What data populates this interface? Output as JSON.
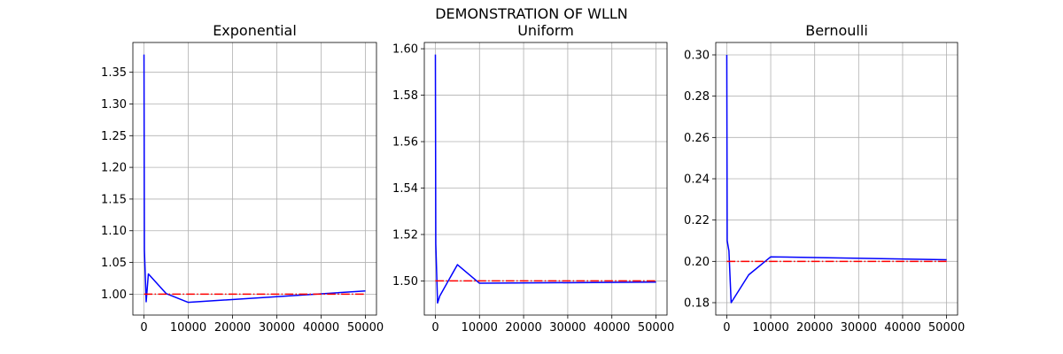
{
  "figure": {
    "suptitle": "DEMONSTRATION OF WLLN"
  },
  "colors": {
    "sample_mean": "#0000ff",
    "true_mean": "#ff0000",
    "grid": "#b0b0b0",
    "axes": "#000000"
  },
  "chart_data": [
    {
      "type": "line",
      "title": "Exponential",
      "xlabel": "",
      "ylabel": "",
      "xlim": [
        -2500,
        52500
      ],
      "ylim": [
        0.967,
        1.397
      ],
      "xticks": [
        0,
        10000,
        20000,
        30000,
        40000,
        50000
      ],
      "xtick_labels": [
        "0",
        "10000",
        "20000",
        "30000",
        "40000",
        "50000"
      ],
      "yticks": [
        1.0,
        1.05,
        1.1,
        1.15,
        1.2,
        1.25,
        1.3,
        1.35
      ],
      "ytick_labels": [
        "1.00",
        "1.05",
        "1.10",
        "1.15",
        "1.20",
        "1.25",
        "1.30",
        "1.35"
      ],
      "grid": true,
      "series": [
        {
          "style": "solid",
          "color": "#0000ff",
          "x": [
            10,
            100,
            500,
            1000,
            5000,
            10000,
            50000
          ],
          "y": [
            1.378,
            1.07,
            0.988,
            1.032,
            1.001,
            0.987,
            1.005
          ]
        },
        {
          "style": "dashdot",
          "color": "#ff0000",
          "x": [
            10,
            50000
          ],
          "y": [
            1.0,
            1.0
          ]
        }
      ]
    },
    {
      "type": "line",
      "title": "Uniform",
      "xlabel": "",
      "ylabel": "",
      "xlim": [
        -2500,
        52500
      ],
      "ylim": [
        1.4853,
        1.6027
      ],
      "xticks": [
        0,
        10000,
        20000,
        30000,
        40000,
        50000
      ],
      "xtick_labels": [
        "0",
        "10000",
        "20000",
        "30000",
        "40000",
        "50000"
      ],
      "yticks": [
        1.5,
        1.52,
        1.54,
        1.56,
        1.58,
        1.6
      ],
      "ytick_labels": [
        "1.50",
        "1.52",
        "1.54",
        "1.56",
        "1.58",
        "1.60"
      ],
      "grid": true,
      "series": [
        {
          "style": "solid",
          "color": "#0000ff",
          "x": [
            10,
            100,
            500,
            1000,
            5000,
            10000,
            50000
          ],
          "y": [
            1.5975,
            1.516,
            1.4905,
            1.4935,
            1.507,
            1.499,
            1.4995
          ]
        },
        {
          "style": "dashdot",
          "color": "#ff0000",
          "x": [
            10,
            50000
          ],
          "y": [
            1.5,
            1.5
          ]
        }
      ]
    },
    {
      "type": "line",
      "title": "Bernoulli",
      "xlabel": "",
      "ylabel": "",
      "xlim": [
        -2500,
        52500
      ],
      "ylim": [
        0.174,
        0.306
      ],
      "xticks": [
        0,
        10000,
        20000,
        30000,
        40000,
        50000
      ],
      "xtick_labels": [
        "0",
        "10000",
        "20000",
        "30000",
        "40000",
        "50000"
      ],
      "yticks": [
        0.18,
        0.2,
        0.22,
        0.24,
        0.26,
        0.28,
        0.3
      ],
      "ytick_labels": [
        "0.18",
        "0.20",
        "0.22",
        "0.24",
        "0.26",
        "0.28",
        "0.30"
      ],
      "grid": true,
      "series": [
        {
          "style": "solid",
          "color": "#0000ff",
          "x": [
            10,
            100,
            500,
            1000,
            5000,
            10000,
            50000
          ],
          "y": [
            0.3,
            0.21,
            0.205,
            0.18,
            0.1935,
            0.2022,
            0.2008
          ]
        },
        {
          "style": "dashdot",
          "color": "#ff0000",
          "x": [
            10,
            50000
          ],
          "y": [
            0.2,
            0.2
          ]
        }
      ]
    }
  ]
}
